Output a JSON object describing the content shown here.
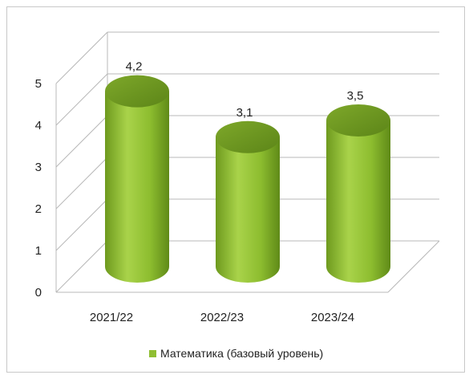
{
  "chart_data": {
    "type": "bar",
    "style": "3d-cylinder",
    "categories": [
      "2021/22",
      "2022/23",
      "2023/24"
    ],
    "series": [
      {
        "name": "Математика (базовый уровень)",
        "values": [
          4.2,
          3.1,
          3.5
        ],
        "color": "#8fbe32"
      }
    ],
    "data_labels": [
      "4,2",
      "3,1",
      "3,5"
    ],
    "yticks": [
      "0",
      "1",
      "2",
      "3",
      "4",
      "5"
    ],
    "ylim": [
      0,
      5
    ],
    "grid": true,
    "legend_position": "bottom"
  }
}
